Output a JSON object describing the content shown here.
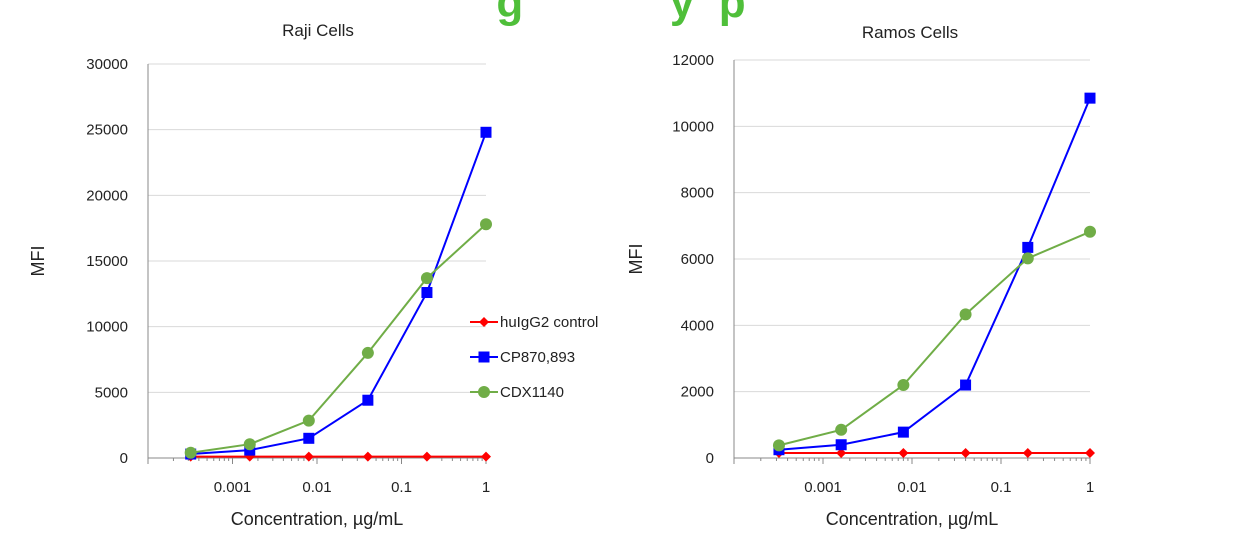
{
  "banner_text": "g            y  p",
  "chart_data": [
    {
      "type": "line",
      "title": "Raji Cells",
      "xlabel": "Concentration, µg/mL",
      "ylabel": "MFI",
      "x_scale": "log",
      "xlim": [
        0.0001,
        1
      ],
      "ylim": [
        0,
        30000
      ],
      "y_ticks": [
        "0",
        "5000",
        "10000",
        "15000",
        "20000",
        "25000",
        "30000"
      ],
      "x_ticks": [
        {
          "value": 0.001,
          "label": "0.001"
        },
        {
          "value": 0.01,
          "label": "0.01"
        },
        {
          "value": 0.1,
          "label": "0.1"
        },
        {
          "value": 1,
          "label": "1"
        }
      ],
      "grid": "horizontal",
      "legend": "right",
      "x": [
        0.00032,
        0.0016,
        0.008,
        0.04,
        0.2,
        1
      ],
      "series": [
        {
          "name": "huIgG2 control",
          "color": "#ff0000",
          "marker": "diamond",
          "values": [
            100,
            100,
            100,
            100,
            100,
            100
          ]
        },
        {
          "name": "CP870,893",
          "color": "#0000ff",
          "marker": "square",
          "values": [
            300,
            600,
            1500,
            4400,
            12600,
            24800
          ]
        },
        {
          "name": "CDX1140",
          "color": "#70ad47",
          "marker": "circle",
          "values": [
            400,
            1050,
            2850,
            8000,
            13700,
            17800
          ]
        }
      ]
    },
    {
      "type": "line",
      "title": "Ramos Cells",
      "xlabel": "Concentration, µg/mL",
      "ylabel": "MFI",
      "x_scale": "log",
      "xlim": [
        0.0001,
        1
      ],
      "ylim": [
        0,
        12000
      ],
      "y_ticks": [
        "0",
        "2000",
        "4000",
        "6000",
        "8000",
        "10000",
        "12000"
      ],
      "x_ticks": [
        {
          "value": 0.001,
          "label": "0.001"
        },
        {
          "value": 0.01,
          "label": "0.01"
        },
        {
          "value": 0.1,
          "label": "0.1"
        },
        {
          "value": 1,
          "label": "1"
        }
      ],
      "grid": "horizontal",
      "legend": "none",
      "x": [
        0.00032,
        0.0016,
        0.008,
        0.04,
        0.2,
        1
      ],
      "series": [
        {
          "name": "huIgG2 control",
          "color": "#ff0000",
          "marker": "diamond",
          "values": [
            150,
            150,
            150,
            150,
            150,
            150
          ]
        },
        {
          "name": "CP870,893",
          "color": "#0000ff",
          "marker": "square",
          "values": [
            250,
            400,
            780,
            2200,
            6350,
            10850
          ]
        },
        {
          "name": "CDX1140",
          "color": "#70ad47",
          "marker": "circle",
          "values": [
            380,
            850,
            2200,
            4330,
            6020,
            6820
          ]
        }
      ]
    }
  ]
}
